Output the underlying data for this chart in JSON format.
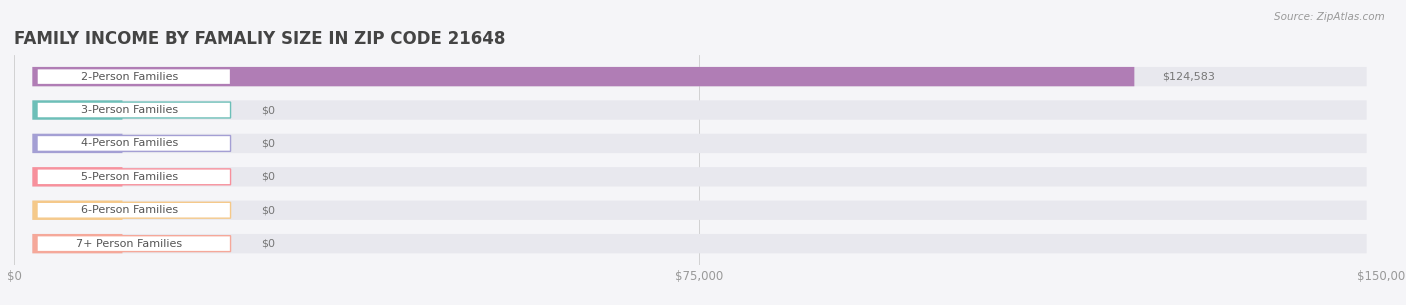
{
  "title": "FAMILY INCOME BY FAMALIY SIZE IN ZIP CODE 21648",
  "source": "Source: ZipAtlas.com",
  "categories": [
    "2-Person Families",
    "3-Person Families",
    "4-Person Families",
    "5-Person Families",
    "6-Person Families",
    "7+ Person Families"
  ],
  "values": [
    124583,
    0,
    0,
    0,
    0,
    0
  ],
  "bar_colors": [
    "#b07db5",
    "#6dbfb8",
    "#a49fd4",
    "#f7909c",
    "#f5c98a",
    "#f5a89a"
  ],
  "value_labels": [
    "$124,583",
    "$0",
    "$0",
    "$0",
    "$0",
    "$0"
  ],
  "x_ticks": [
    0,
    75000,
    150000
  ],
  "x_tick_labels": [
    "$0",
    "$75,000",
    "$150,000"
  ],
  "xlim": [
    0,
    150000
  ],
  "background_color": "#f5f5f8",
  "bar_bg_color": "#e8e8ee",
  "title_fontsize": 12,
  "tick_fontsize": 8.5,
  "label_fontsize": 8,
  "value_fontsize": 8,
  "source_fontsize": 7.5,
  "title_color": "#444444",
  "tick_color": "#999999",
  "label_text_color": "#555555",
  "value_text_color": "#777777",
  "source_color": "#999999"
}
